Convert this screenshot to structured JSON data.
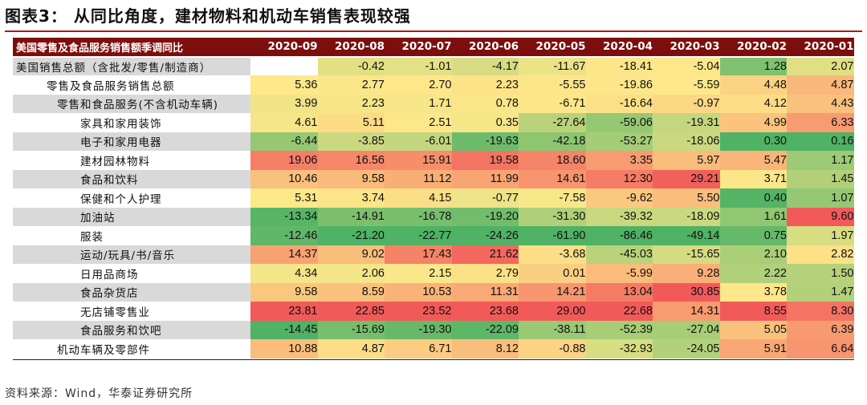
{
  "figure": {
    "title": "图表3：  从同比角度，建材物料和机动车销售表现较强",
    "source": "资料来源：Wind，华泰证券研究所"
  },
  "colors": {
    "header_bg": "#7d0e0e",
    "title_rule": "#a0201c",
    "scale_low": "#4fb264",
    "scale_mid": "#fde88a",
    "scale_high": "#f25a5a"
  },
  "chart_data": {
    "type": "heatmap",
    "title": "美国零售及食品服务销售额季调同比",
    "columns": [
      "2020-09",
      "2020-08",
      "2020-07",
      "2020-06",
      "2020-05",
      "2020-04",
      "2020-03",
      "2020-02",
      "2020-01"
    ],
    "rows": [
      {
        "label": "美国销售总额（含批发/零售/制造商）",
        "indent": 0,
        "values": [
          null,
          -0.42,
          -1.01,
          -4.17,
          -11.67,
          -18.41,
          -5.04,
          1.28,
          2.07
        ]
      },
      {
        "label": "零售及食品服务销售总额",
        "indent": 1,
        "values": [
          5.36,
          2.77,
          2.7,
          2.23,
          -5.55,
          -19.86,
          -5.59,
          4.48,
          4.87
        ]
      },
      {
        "label": "零售和食品服务(不含机动车辆)",
        "indent": 2,
        "values": [
          3.99,
          2.23,
          1.71,
          0.78,
          -6.71,
          -16.64,
          -0.97,
          4.12,
          4.43
        ]
      },
      {
        "label": "家具和家用装饰",
        "indent": 3,
        "values": [
          4.61,
          5.11,
          2.51,
          0.35,
          -27.64,
          -59.06,
          -19.31,
          4.99,
          6.33
        ]
      },
      {
        "label": "电子和家用电器",
        "indent": 3,
        "values": [
          -6.44,
          -3.85,
          -6.01,
          -19.63,
          -42.18,
          -53.27,
          -18.06,
          0.3,
          0.16
        ]
      },
      {
        "label": "建材园林物料",
        "indent": 3,
        "values": [
          19.06,
          16.56,
          15.91,
          19.58,
          18.6,
          3.35,
          5.97,
          5.47,
          1.17
        ]
      },
      {
        "label": "食品和饮料",
        "indent": 3,
        "values": [
          10.46,
          9.58,
          11.12,
          11.99,
          14.61,
          12.3,
          29.21,
          3.71,
          1.45
        ]
      },
      {
        "label": "保健和个人护理",
        "indent": 3,
        "values": [
          5.31,
          3.74,
          4.15,
          -0.77,
          -7.58,
          -9.62,
          5.5,
          0.4,
          1.07
        ]
      },
      {
        "label": "加油站",
        "indent": 3,
        "values": [
          -13.34,
          -14.91,
          -16.78,
          -19.2,
          -31.3,
          -39.32,
          -18.09,
          1.61,
          9.6
        ]
      },
      {
        "label": "服装",
        "indent": 3,
        "values": [
          -12.46,
          -21.2,
          -22.77,
          -24.26,
          -61.9,
          -86.46,
          -49.14,
          0.75,
          1.97
        ]
      },
      {
        "label": "运动/玩具/书/音乐",
        "indent": 3,
        "values": [
          14.37,
          9.02,
          17.43,
          21.62,
          -3.68,
          -45.03,
          -15.65,
          2.1,
          2.82
        ]
      },
      {
        "label": "日用品商场",
        "indent": 3,
        "values": [
          4.34,
          2.06,
          2.15,
          2.79,
          0.01,
          -5.99,
          9.28,
          2.22,
          1.5
        ]
      },
      {
        "label": "食品杂货店",
        "indent": 3,
        "values": [
          9.58,
          8.59,
          10.53,
          11.31,
          14.21,
          13.04,
          30.85,
          3.78,
          1.47
        ]
      },
      {
        "label": "无店铺零售业",
        "indent": 3,
        "values": [
          23.81,
          22.85,
          23.52,
          23.68,
          29.0,
          22.68,
          14.31,
          8.55,
          8.3
        ]
      },
      {
        "label": "食品服务和饮吧",
        "indent": 3,
        "values": [
          -14.45,
          -15.69,
          -19.3,
          -22.09,
          -38.11,
          -52.39,
          -27.04,
          5.05,
          6.39
        ]
      },
      {
        "label": "机动车辆及零部件",
        "indent": 2,
        "values": [
          10.88,
          4.87,
          6.71,
          8.12,
          -0.88,
          -32.93,
          -24.05,
          5.91,
          6.64
        ]
      }
    ],
    "color_scale": "per-column, low=green, mid=yellow, high=red"
  }
}
